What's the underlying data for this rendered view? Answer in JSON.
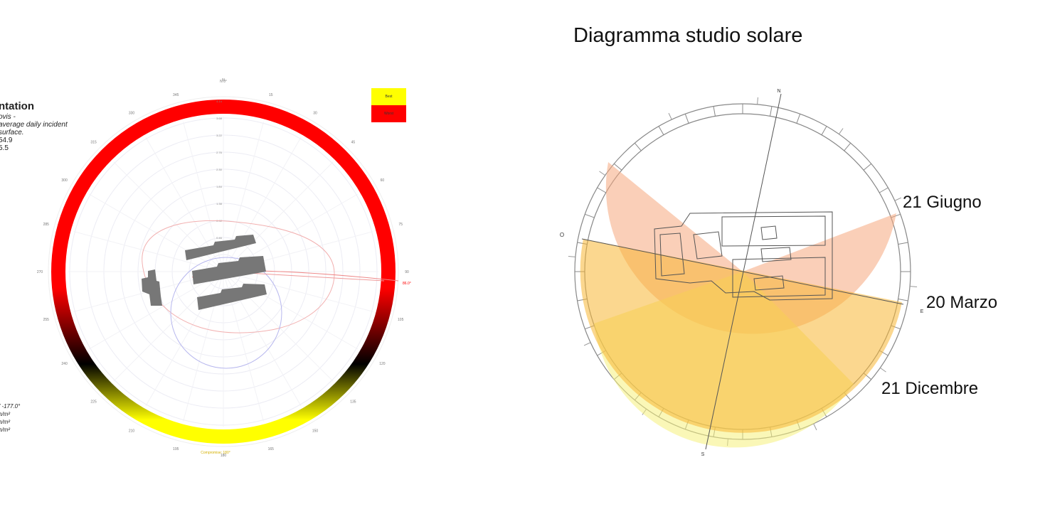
{
  "left_panel": {
    "legend_title": "ntation",
    "legend_lines": [
      "ovis -",
      "average daily incident",
      "surface.",
      "54.9",
      "5.5"
    ],
    "legend_bottom_lines": [
      "/ -177.0°",
      "h/m²",
      "h/m²",
      "h/m²"
    ],
    "key": [
      {
        "label": "Best",
        "color": "#ffff00"
      },
      {
        "label": "Worst",
        "color": "#ff0000"
      }
    ],
    "compass_labels": [
      "N",
      "15",
      "30",
      "45",
      "60",
      "75",
      "90",
      "105",
      "120",
      "135",
      "150",
      "165",
      "180",
      "195",
      "210",
      "225",
      "240",
      "255",
      "270",
      "285",
      "300",
      "315",
      "330",
      "345"
    ],
    "radial_labels": [
      "0.46",
      "0.92",
      "1.38",
      "1.84",
      "2.30",
      "2.76",
      "3.22",
      "3.68",
      "4.14"
    ],
    "heading_marker": "N 0°",
    "direction_marker": "86.0°",
    "bottom_marker": "Compromise: 180°"
  },
  "right_panel": {
    "title": "Diagramma studio solare",
    "cardinals": {
      "north": "N",
      "south": "S",
      "east": "E",
      "west": "O"
    },
    "arc_labels": {
      "summer": "21 Giugno",
      "equinox": "20 Marzo",
      "winter": "21 Dicembre"
    },
    "colors": {
      "summer": "#f6a87e",
      "equinox": "#f7b733",
      "winter": "#f5f07c"
    }
  }
}
